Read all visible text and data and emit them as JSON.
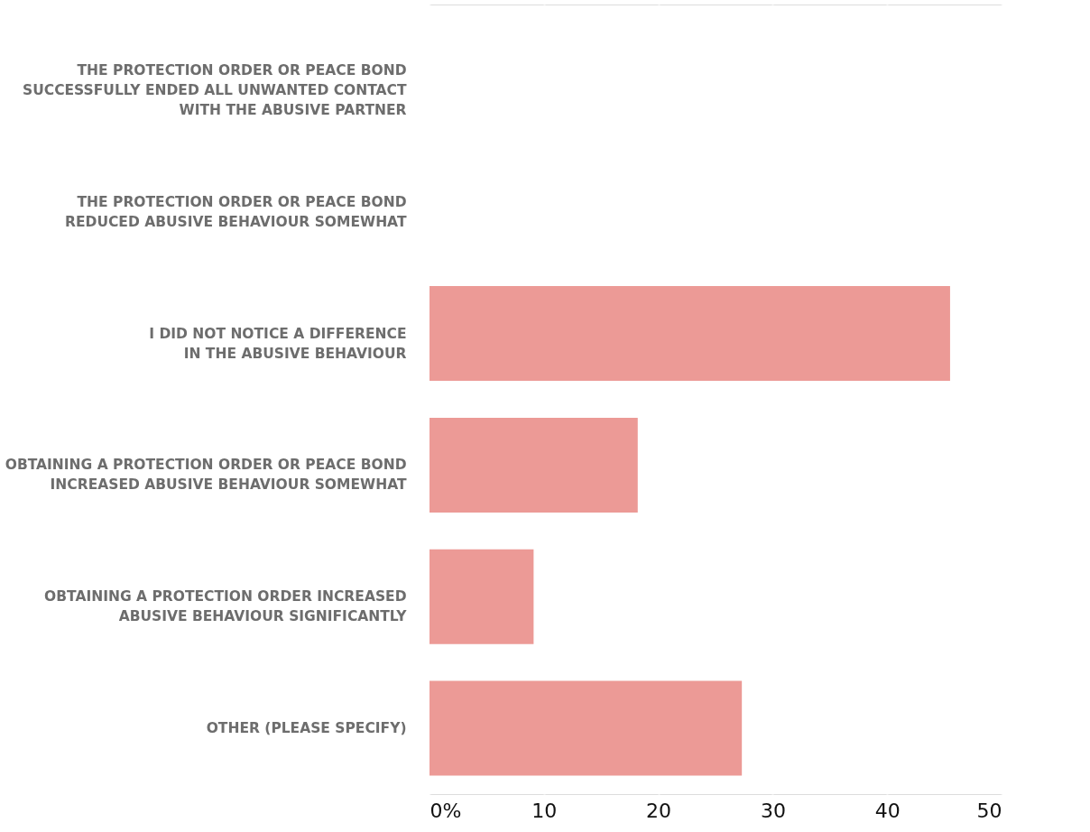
{
  "chart_data": {
    "type": "bar",
    "orientation": "horizontal",
    "categories": [
      "THE PROTECTION ORDER OR PEACE BOND\nSUCCESSFULLY ENDED ALL UNWANTED CONTACT\nWITH THE ABUSIVE PARTNER",
      "THE PROTECTION ORDER OR PEACE BOND\nREDUCED ABUSIVE BEHAVIOUR SOMEWHAT",
      "I DID NOT NOTICE A DIFFERENCE\nIN THE ABUSIVE BEHAVIOUR",
      "OBTAINING A PROTECTION ORDER OR PEACE BOND\nINCREASED ABUSIVE BEHAVIOUR SOMEWHAT",
      "OBTAINING A PROTECTION ORDER INCREASED\nABUSIVE BEHAVIOUR SIGNIFICANTLY",
      "OTHER (PLEASE SPECIFY)"
    ],
    "values": [
      0,
      0,
      45.5,
      18.2,
      9.1,
      27.3
    ],
    "color": "#ec9a96",
    "xlim": [
      0,
      50
    ],
    "xticks": [
      {
        "value": 0,
        "label": "0%"
      },
      10,
      20,
      30,
      40,
      50
    ],
    "grid": "x"
  }
}
